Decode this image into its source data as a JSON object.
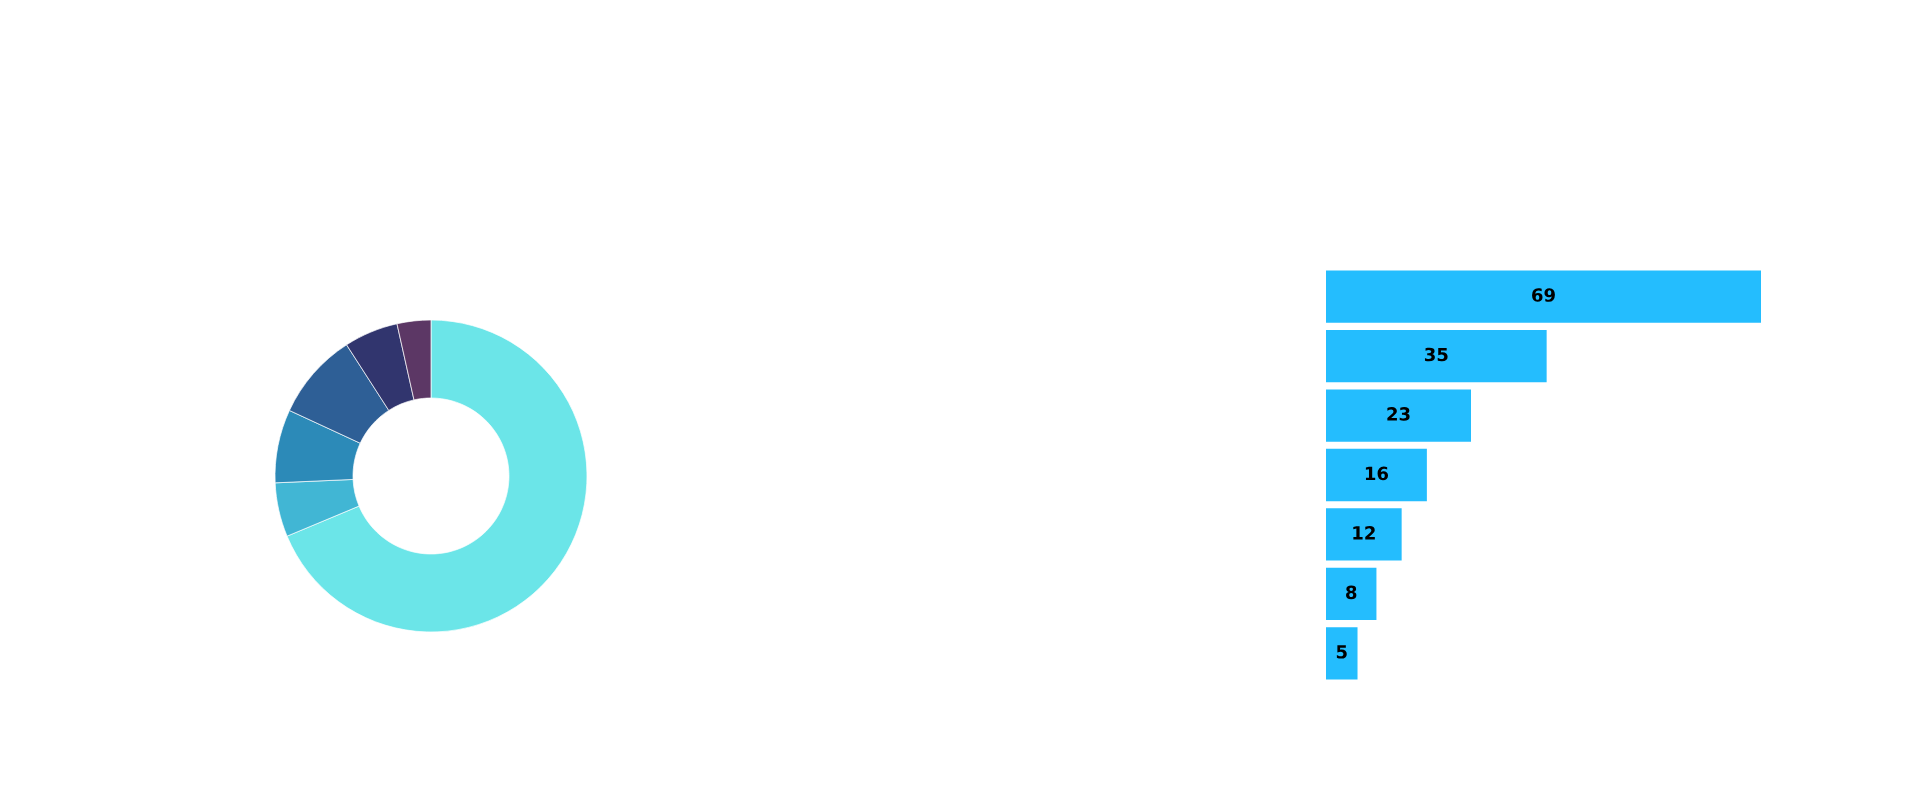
{
  "chart_data": [
    {
      "type": "donut",
      "categories": [
        null,
        null,
        null,
        null,
        null,
        null
      ],
      "values": [
        68.7,
        5.6,
        7.6,
        9.0,
        5.6,
        3.5
      ],
      "colors": [
        "#6be5e8",
        "#41b6d4",
        "#2c8ab8",
        "#2e5f96",
        "#31356e",
        "#5c3765"
      ]
    },
    {
      "type": "bar",
      "orientation": "horizontal",
      "categories": [
        null,
        null,
        null,
        null,
        null,
        null,
        null
      ],
      "values": [
        69,
        35,
        23,
        16,
        12,
        8,
        5
      ],
      "color": "#24bdfe",
      "data_labels": true
    }
  ]
}
